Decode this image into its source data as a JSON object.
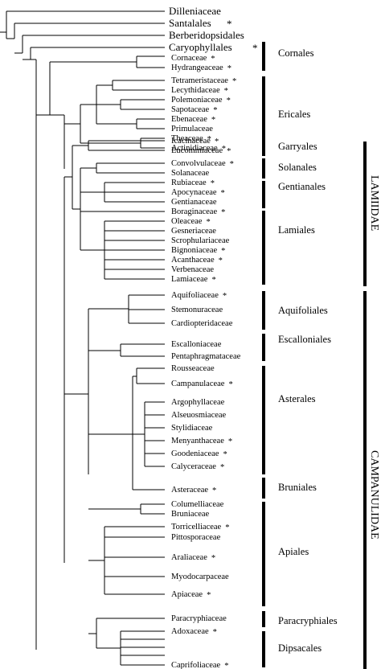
{
  "outgroups": [
    {
      "name": "Dilleniaceae",
      "star": false
    },
    {
      "name": "Santalales",
      "star": true
    },
    {
      "name": "Berberidopsidales",
      "star": false
    },
    {
      "name": "Caryophyllales",
      "star": true
    }
  ],
  "star_symbol": "*",
  "taxa": [
    {
      "name": "Cornaceae",
      "star": true
    },
    {
      "name": "Hydrangeaceae",
      "star": true
    },
    {
      "name": "Tetrameristaceae",
      "star": true
    },
    {
      "name": "Lecythidaceae",
      "star": true
    },
    {
      "name": "Polemoniaceae",
      "star": true
    },
    {
      "name": "Sapotaceae",
      "star": true
    },
    {
      "name": "Ebenaceae",
      "star": true
    },
    {
      "name": "Primulaceae",
      "star": false
    },
    {
      "name": "Theaceae",
      "star": true
    },
    {
      "name": "Actinidiaceae",
      "star": true
    },
    {
      "name": "Icacinaceae",
      "star": true
    },
    {
      "name": "Eucommiaceae",
      "star": true
    },
    {
      "name": "Convolvulaceae",
      "star": true
    },
    {
      "name": "Solanaceae",
      "star": false
    },
    {
      "name": "Rubiaceae",
      "star": true
    },
    {
      "name": "Apocynaceae",
      "star": true
    },
    {
      "name": "Gentianaceae",
      "star": false
    },
    {
      "name": "Boraginaceae",
      "star": true
    },
    {
      "name": "Oleaceae",
      "star": true
    },
    {
      "name": "Gesneriaceae",
      "star": false
    },
    {
      "name": "Scrophulariaceae",
      "star": false
    },
    {
      "name": "Bignoniaceae",
      "star": true
    },
    {
      "name": "Acanthaceae",
      "star": true
    },
    {
      "name": "Verbenaceae",
      "star": false
    },
    {
      "name": "Lamiaceae",
      "star": true
    },
    {
      "name": "Aquifoliaceae",
      "star": true
    },
    {
      "name": "Stemonuraceae",
      "star": false
    },
    {
      "name": "Cardiopteridaceae",
      "star": false
    },
    {
      "name": "Escalloniaceae",
      "star": false
    },
    {
      "name": "Pentaphragmataceae",
      "star": false
    },
    {
      "name": "Rousseaceae",
      "star": false
    },
    {
      "name": "Campanulaceae",
      "star": true
    },
    {
      "name": "Argophyllaceae",
      "star": false
    },
    {
      "name": "Alseuosmiaceae",
      "star": false
    },
    {
      "name": "Stylidiaceae",
      "star": false
    },
    {
      "name": "Menyanthaceae",
      "star": true
    },
    {
      "name": "Goodeniaceae",
      "star": true
    },
    {
      "name": "Calyceraceae",
      "star": true
    },
    {
      "name": "Asteraceae",
      "star": true
    },
    {
      "name": "Columelliaceae",
      "star": false
    },
    {
      "name": "Bruniaceae",
      "star": false
    },
    {
      "name": "Torricelliaceae",
      "star": true
    },
    {
      "name": "Pittosporaceae",
      "star": false
    },
    {
      "name": "Araliaceae",
      "star": true
    },
    {
      "name": "Myodocarpaceae",
      "star": false
    },
    {
      "name": "Apiaceae",
      "star": true
    },
    {
      "name": "Paracryphiaceae",
      "star": false
    },
    {
      "name": "Adoxaceae",
      "star": true
    },
    {
      "name": "Caprifoliaceae",
      "star": true
    }
  ],
  "orders": [
    "Cornales",
    "Ericales",
    "Garryales",
    "Solanales",
    "Gentianales",
    "Lamiales",
    "Aquifoliales",
    "Escalloniales",
    "Asterales",
    "Bruniales",
    "Apiales",
    "Paracryphiales",
    "Dipsacales"
  ],
  "clades": [
    "LAMIIDAE",
    "CAMPANULIDAE"
  ]
}
